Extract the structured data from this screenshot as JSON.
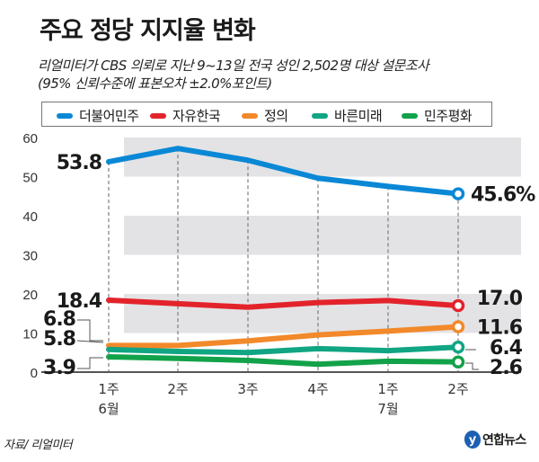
{
  "colors": {
    "band": "#e3e3e5",
    "axis": "#555555",
    "text": "#1a1a1a"
  },
  "chart_data": {
    "type": "line",
    "title": "주요 정당 지지율 변화",
    "subtitle_lines": [
      "리얼미터가 CBS 의뢰로 지난 9~13일 전국 성인 2,502명 대상 설문조사",
      "(95% 신뢰수준에 표본오차 ±2.0%포인트)"
    ],
    "xlabel": "",
    "ylabel": "",
    "ylim": [
      0,
      60
    ],
    "yticks": [
      "0",
      "10",
      "20",
      "30",
      "40",
      "50",
      "60"
    ],
    "ytick_values": [
      0,
      10,
      20,
      30,
      40,
      50,
      60
    ],
    "categories": [
      "1주",
      "2주",
      "3주",
      "4주",
      "1주",
      "2주"
    ],
    "month_labels": [
      {
        "label": "6월",
        "category_index": 0
      },
      {
        "label": "7월",
        "category_index": 4
      }
    ],
    "grid": "alternating horizontal bands",
    "legend_position": "top",
    "series": [
      {
        "name": "더불어민주",
        "color": "#0a88d6",
        "values": [
          53.8,
          57.2,
          54.2,
          49.6,
          47.5,
          45.6
        ],
        "start_label": "53.8",
        "end_label": "45.6%"
      },
      {
        "name": "자유한국",
        "color": "#e3232b",
        "values": [
          18.4,
          17.5,
          16.6,
          17.8,
          18.3,
          17.0
        ],
        "start_label": "18.4",
        "end_label": "17.0"
      },
      {
        "name": "정의",
        "color": "#f2892a",
        "values": [
          6.8,
          6.8,
          8.0,
          9.5,
          10.5,
          11.6
        ],
        "start_label": "6.8",
        "end_label": "11.6"
      },
      {
        "name": "바른미래",
        "color": "#10a583",
        "values": [
          5.8,
          5.3,
          5.0,
          6.0,
          5.5,
          6.4
        ],
        "start_label": "5.8",
        "end_label": "6.4"
      },
      {
        "name": "민주평화",
        "color": "#12a24a",
        "values": [
          3.9,
          3.5,
          3.0,
          2.0,
          2.8,
          2.6
        ],
        "start_label": "3.9",
        "end_label": "2.6"
      }
    ]
  },
  "footer": {
    "source": "자료/ 리얼미터",
    "logo_text": "연합뉴스",
    "logo_mark": "y"
  }
}
